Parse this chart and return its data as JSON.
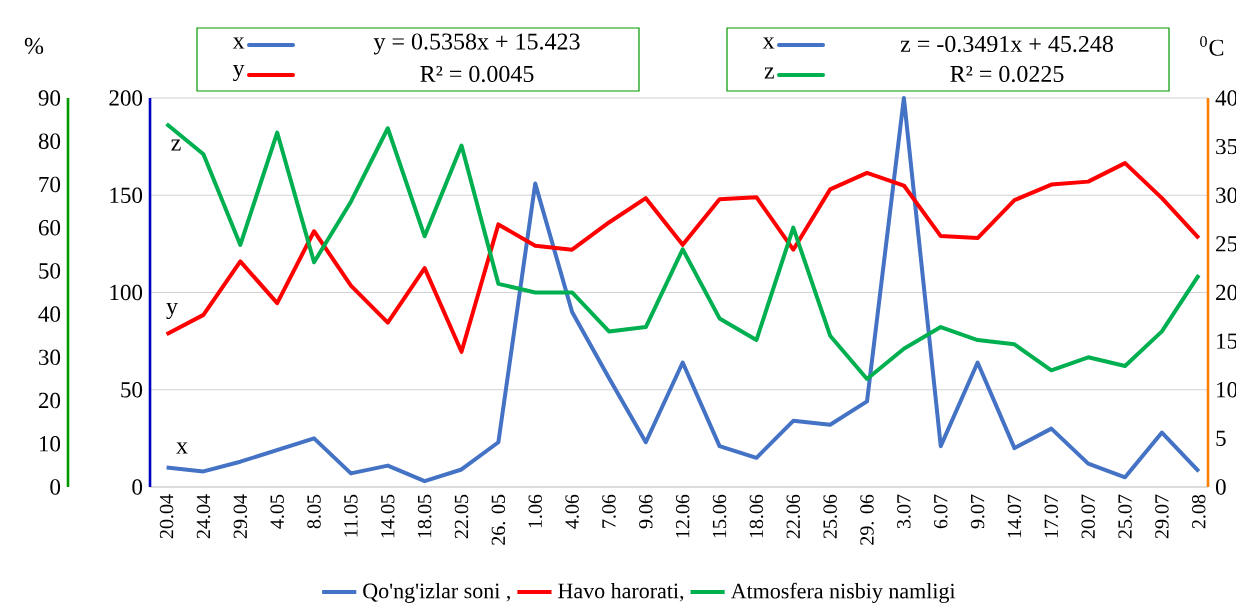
{
  "chart_data": {
    "type": "line",
    "categories": [
      "20.04",
      "24.04",
      "29.04",
      "4.05",
      "8.05",
      "11.05",
      "14.05",
      "18.05",
      "22.05",
      "26. 05",
      "1.06",
      "4.06",
      "7.06",
      "9.06",
      "12.06",
      "15.06",
      "18.06",
      "22.06",
      "25.06",
      "29. 06",
      "3.07",
      "6.07",
      "9.07",
      "14.07",
      "17.07",
      "20.07",
      "25.07",
      "29.07",
      "2.08"
    ],
    "series": [
      {
        "name": "Qo'ng'izlar soni ,",
        "color": "#4472c4",
        "values": [
          10,
          8,
          13,
          19,
          25,
          7,
          11,
          3,
          9,
          23,
          156,
          90,
          56,
          23,
          64,
          21,
          15,
          34,
          32,
          44,
          200,
          21,
          64,
          20,
          30,
          12,
          5,
          28,
          8
        ]
      },
      {
        "name": "Havo harorati,",
        "color": "#ff0000",
        "axis": "y2",
        "values": [
          15.7,
          17.7,
          23.2,
          18.9,
          26.3,
          20.7,
          16.9,
          22.5,
          13.9,
          27.0,
          24.8,
          24.4,
          27.2,
          29.7,
          24.9,
          29.6,
          29.8,
          24.4,
          30.6,
          32.3,
          31.0,
          25.8,
          25.6,
          29.5,
          31.1,
          31.4,
          33.3,
          29.7,
          25.6
        ]
      },
      {
        "name": "Atmosfera nisbiy namligi",
        "color": "#00b050",
        "axis": "y3",
        "values": [
          84,
          77,
          56,
          82,
          52,
          66,
          83,
          58,
          79,
          47,
          45,
          45,
          36,
          37,
          55,
          39,
          34,
          60,
          35,
          25,
          32,
          37,
          34,
          33,
          27,
          30,
          28,
          36,
          49
        ]
      }
    ],
    "ylim": [
      0,
      200
    ],
    "yticks": [
      0,
      50,
      100,
      150,
      200
    ],
    "y2lim": [
      0,
      40
    ],
    "y2ticks": [
      0,
      5,
      10,
      15,
      20,
      25,
      30,
      35,
      40
    ],
    "y2label": "$^{0}$C",
    "y3lim": [
      0,
      90
    ],
    "y3ticks": [
      0,
      10,
      20,
      30,
      40,
      50,
      60,
      70,
      80,
      90
    ],
    "y3label": "%",
    "grid": "y",
    "legend": "bottom",
    "annotations": [
      "x",
      "y",
      "z",
      "x",
      "y",
      "y = 0.5358x + 15.423",
      "R² = 0.0045",
      "x",
      "z",
      "z = -0.3491x + 45.248",
      "R² = 0.0225"
    ]
  }
}
